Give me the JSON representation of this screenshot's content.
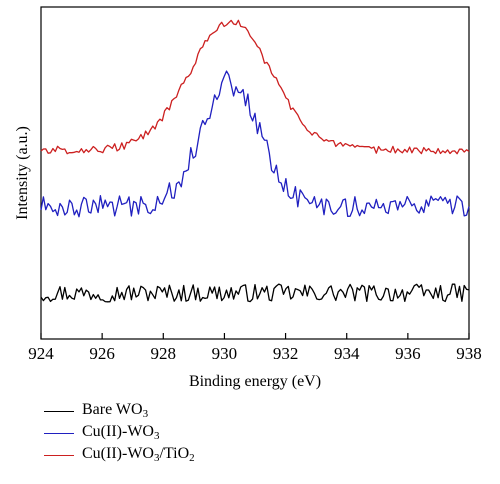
{
  "chart_data": {
    "type": "line",
    "title": "",
    "xlabel": "Binding energy (eV)",
    "ylabel": "Intensity (a.u.)",
    "xlim": [
      924,
      938
    ],
    "x_ticks": [
      924,
      926,
      928,
      930,
      932,
      934,
      936,
      938
    ],
    "y_ticks_shown": false,
    "grid": false,
    "legend_position": "bottom-left, below plot",
    "series": [
      {
        "name": "Bare WO3",
        "label_parts": [
          "Bare WO",
          "3"
        ],
        "color": "#000000",
        "baseline": 1.0,
        "noise": 0.35,
        "peaks": []
      },
      {
        "name": "Cu(II)-WO3",
        "label_parts": [
          "Cu(II)-WO",
          "3"
        ],
        "color": "#2020c0",
        "baseline": 4.4,
        "noise": 0.42,
        "peaks": [
          {
            "center": 930.2,
            "height": 4.9,
            "width": 0.95
          }
        ]
      },
      {
        "name": "Cu(II)-WO3/TiO2",
        "label_parts": [
          "Cu(II)-WO",
          "3",
          "/TiO",
          "2"
        ],
        "color": "#cc2020",
        "baseline": 6.6,
        "noise": 0.15,
        "peaks": [
          {
            "center": 930.2,
            "height": 5.0,
            "width": 1.35
          }
        ]
      }
    ]
  }
}
